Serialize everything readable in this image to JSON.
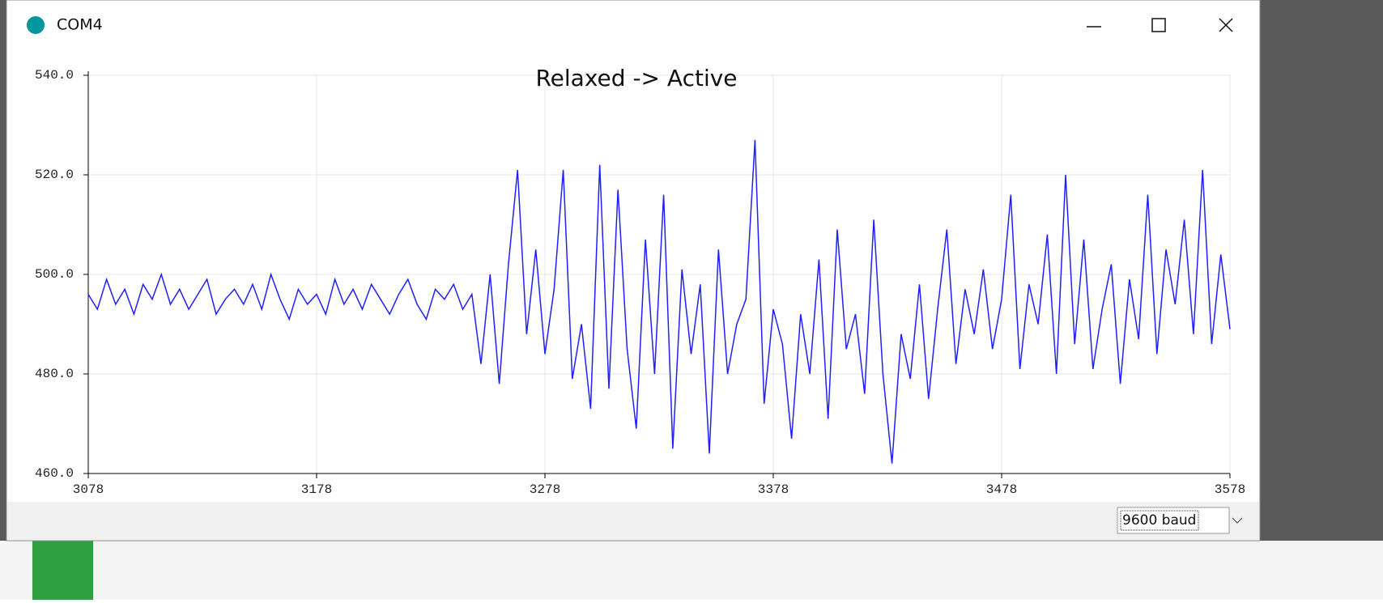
{
  "window": {
    "title": "COM4",
    "baud": "9600 baud"
  },
  "chart_data": {
    "type": "line",
    "title": "Relaxed -> Active",
    "x": [
      3078,
      3082,
      3086,
      3090,
      3094,
      3098,
      3102,
      3106,
      3110,
      3114,
      3118,
      3122,
      3126,
      3130,
      3134,
      3138,
      3142,
      3146,
      3150,
      3154,
      3158,
      3162,
      3166,
      3170,
      3174,
      3178,
      3182,
      3186,
      3190,
      3194,
      3198,
      3202,
      3206,
      3210,
      3214,
      3218,
      3222,
      3226,
      3230,
      3234,
      3238,
      3242,
      3246,
      3250,
      3254,
      3258,
      3262,
      3266,
      3270,
      3274,
      3278,
      3282,
      3286,
      3290,
      3294,
      3298,
      3302,
      3306,
      3310,
      3314,
      3318,
      3322,
      3326,
      3330,
      3334,
      3338,
      3342,
      3346,
      3350,
      3354,
      3358,
      3362,
      3366,
      3370,
      3374,
      3378,
      3382,
      3386,
      3390,
      3394,
      3398,
      3402,
      3406,
      3410,
      3414,
      3418,
      3422,
      3426,
      3430,
      3434,
      3438,
      3442,
      3446,
      3450,
      3454,
      3458,
      3462,
      3466,
      3470,
      3474,
      3478,
      3482,
      3486,
      3490,
      3494,
      3498,
      3502,
      3506,
      3510,
      3514,
      3518,
      3522,
      3526,
      3530,
      3534,
      3538,
      3542,
      3546,
      3550,
      3554,
      3558,
      3562,
      3566,
      3570,
      3574,
      3578
    ],
    "series": [
      {
        "color": "#1f1fff",
        "values": [
          496,
          493,
          499,
          494,
          497,
          492,
          498,
          495,
          500,
          494,
          497,
          493,
          496,
          499,
          492,
          495,
          497,
          494,
          498,
          493,
          500,
          495,
          491,
          497,
          494,
          496,
          492,
          499,
          494,
          497,
          493,
          498,
          495,
          492,
          496,
          499,
          494,
          491,
          497,
          495,
          498,
          493,
          496,
          482,
          500,
          478,
          502,
          521,
          488,
          505,
          484,
          497,
          521,
          479,
          490,
          473,
          522,
          477,
          517,
          485,
          469,
          507,
          480,
          516,
          465,
          501,
          484,
          498,
          464,
          505,
          480,
          490,
          495,
          527,
          474,
          493,
          486,
          467,
          492,
          480,
          503,
          471,
          509,
          485,
          492,
          476,
          511,
          480,
          462,
          488,
          479,
          498,
          475,
          493,
          509,
          482,
          497,
          488,
          501,
          485,
          495,
          516,
          481,
          498,
          490,
          508,
          480,
          520,
          486,
          507,
          481,
          493,
          502,
          478,
          499,
          487,
          516,
          484,
          505,
          494,
          511,
          488,
          521,
          486,
          504,
          489
        ]
      }
    ],
    "xlim": [
      3078,
      3578
    ],
    "xticks": [
      3078,
      3178,
      3278,
      3378,
      3478,
      3578
    ],
    "ylim": [
      460,
      540
    ],
    "yticks": [
      {
        "value": 460,
        "label": "460.0"
      },
      {
        "value": 480,
        "label": "480.0"
      },
      {
        "value": 500,
        "label": "500.0"
      },
      {
        "value": 520,
        "label": "520.0"
      },
      {
        "value": 540,
        "label": "540.0"
      }
    ],
    "grid": true
  }
}
